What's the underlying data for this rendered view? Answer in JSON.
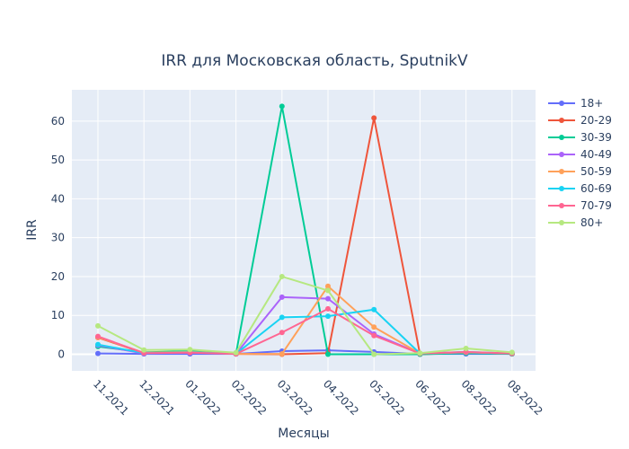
{
  "chart_data": {
    "type": "line",
    "title": "IRR для Московская область, SputnikV",
    "xlabel": "Месяцы",
    "ylabel": "IRR",
    "categories": [
      "11.2021",
      "12.2021",
      "01.2022",
      "02.2022",
      "03.2022",
      "04.2022",
      "05.2022",
      "06.2022",
      "08.2022",
      "08.2022"
    ],
    "yticks": [
      0,
      10,
      20,
      30,
      40,
      50,
      60
    ],
    "ylim": [
      -4.5,
      68
    ],
    "grid": true,
    "legend_position": "right",
    "series": [
      {
        "name": "18+",
        "color": "#636efa",
        "values": [
          0.2,
          0.1,
          0.1,
          0.1,
          0.8,
          1.0,
          0.6,
          0.1,
          0.1,
          0.1
        ]
      },
      {
        "name": "20-29",
        "color": "#EF553B",
        "values": [
          4.3,
          0.3,
          0.5,
          0.1,
          0.0,
          0.3,
          60.8,
          0.0,
          0.4,
          0.1
        ]
      },
      {
        "name": "30-39",
        "color": "#00cc96",
        "values": [
          2.0,
          0.5,
          0.8,
          0.1,
          63.8,
          0.0,
          0.0,
          0.0,
          0.3,
          0.1
        ]
      },
      {
        "name": "40-49",
        "color": "#ab63fa",
        "values": [
          2.3,
          0.2,
          0.5,
          0.1,
          14.7,
          14.3,
          5.2,
          0.2,
          0.5,
          0.2
        ]
      },
      {
        "name": "50-59",
        "color": "#FFA15A",
        "values": [
          4.4,
          0.4,
          0.6,
          0.1,
          0.1,
          17.5,
          7.0,
          0.2,
          0.5,
          0.2
        ]
      },
      {
        "name": "60-69",
        "color": "#19d3f3",
        "values": [
          2.5,
          0.3,
          0.5,
          0.1,
          9.5,
          9.8,
          11.5,
          0.2,
          0.6,
          0.2
        ]
      },
      {
        "name": "70-79",
        "color": "#FF6692",
        "values": [
          4.6,
          0.3,
          0.4,
          0.1,
          5.6,
          11.7,
          4.8,
          0.2,
          0.6,
          0.2
        ]
      },
      {
        "name": "80+",
        "color": "#B6E880",
        "values": [
          7.3,
          1.1,
          1.2,
          0.4,
          20.0,
          16.4,
          0.0,
          0.3,
          1.5,
          0.5
        ]
      }
    ]
  }
}
